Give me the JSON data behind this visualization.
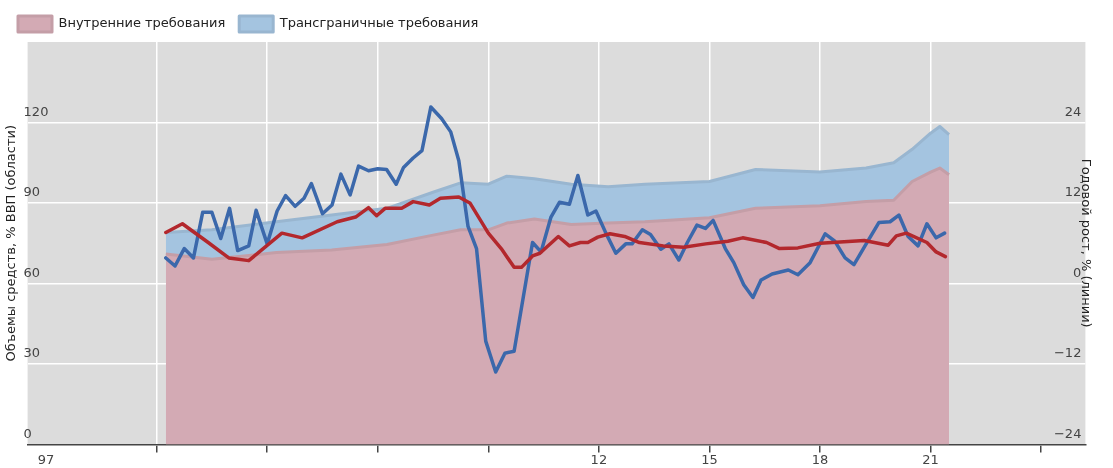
{
  "chart_data": {
    "type": "area",
    "stacked": true,
    "ylabel": "Объемы средств, % ВВП (области)",
    "y2label": "Годовой рост, % (линии)",
    "x": [
      2000.25,
      2001.5,
      2003.25,
      2004.75,
      2006.25,
      2007.5,
      2008.25,
      2009,
      2009.5,
      2010.25,
      2011.25,
      2012.25,
      2013.25,
      2015,
      2016.25,
      2018,
      2019.25,
      2020,
      2020.5,
      2021,
      2021.25,
      2021.5
    ],
    "series": [
      {
        "name": "Внутренние требования",
        "type": "area",
        "color": "#d3aab4",
        "values": [
          71,
          69,
          71.5,
          72.5,
          74.5,
          78,
          80,
          80,
          82.5,
          84,
          82,
          82.5,
          83,
          84.5,
          88,
          89,
          90.5,
          91,
          98,
          101.5,
          103,
          100.5
        ]
      },
      {
        "name": "Трансграничные требования",
        "type": "area",
        "color": "#a4c4e0",
        "values": [
          8,
          11,
          11.5,
          13,
          13.5,
          16,
          17.5,
          17,
          17.5,
          15,
          15,
          13.5,
          14,
          13.5,
          14.5,
          12.5,
          12.5,
          14,
          12,
          14.5,
          15.5,
          15
        ]
      },
      {
        "type": "line",
        "axis": "y2",
        "color": "#b3282d",
        "x": [
          2000.25,
          2000.7,
          2001.4,
          2001.96,
          2002.5,
          2003.4,
          2003.95,
          2004.9,
          2005.4,
          2005.75,
          2005.97,
          2006.2,
          2006.65,
          2006.96,
          2007.4,
          2007.7,
          2008.2,
          2008.5,
          2009,
          2009.35,
          2009.7,
          2009.9,
          2010.2,
          2010.4,
          2010.9,
          2011.2,
          2011.5,
          2011.7,
          2011.97,
          2012.3,
          2012.7,
          2013.1,
          2013.75,
          2014.3,
          2014.9,
          2015.5,
          2015.9,
          2016.55,
          2016.9,
          2017.4,
          2018,
          2019.2,
          2019.85,
          2020.07,
          2020.34,
          2020.9,
          2021.15,
          2021.4
        ],
        "values": [
          7.6,
          8.9,
          6.1,
          3.8,
          3.4,
          7.5,
          6.8,
          9.2,
          9.9,
          11.3,
          10.1,
          11.2,
          11.2,
          12.2,
          11.7,
          12.7,
          12.9,
          12,
          7.5,
          5.2,
          2.4,
          2.4,
          4.1,
          4.5,
          7,
          5.6,
          6.1,
          6.1,
          6.9,
          7.4,
          7,
          6.1,
          5.6,
          5.4,
          5.9,
          6.3,
          6.8,
          6.1,
          5.2,
          5.3,
          6,
          6.4,
          5.7,
          7.1,
          7.5,
          6.1,
          4.7,
          4
        ]
      },
      {
        "type": "line",
        "axis": "y2",
        "color": "#3b68ab",
        "x": [
          2000.25,
          2000.5,
          2000.75,
          2001,
          2001.25,
          2001.5,
          2001.74,
          2001.98,
          2002.2,
          2002.5,
          2002.7,
          2003,
          2003.27,
          2003.5,
          2003.76,
          2004,
          2004.2,
          2004.5,
          2004.76,
          2005,
          2005.25,
          2005.48,
          2005.75,
          2006,
          2006.24,
          2006.5,
          2006.7,
          2006.96,
          2007.2,
          2007.44,
          2007.73,
          2007.98,
          2008.2,
          2008.45,
          2008.68,
          2008.93,
          2009.2,
          2009.45,
          2009.7,
          2010.2,
          2010.43,
          2010.7,
          2010.93,
          2011.2,
          2011.43,
          2011.7,
          2011.92,
          2012.19,
          2012.46,
          2012.73,
          2012.9,
          2013.18,
          2013.4,
          2013.68,
          2013.9,
          2014.17,
          2014.4,
          2014.66,
          2014.89,
          2015.1,
          2015.43,
          2015.66,
          2015.93,
          2016.18,
          2016.4,
          2016.7,
          2017.14,
          2017.4,
          2017.73,
          2018.14,
          2018.4,
          2018.68,
          2018.92,
          2019.2,
          2019.6,
          2019.9,
          2020.14,
          2020.39,
          2020.66,
          2020.9,
          2021.15,
          2021.38
        ],
        "values": [
          3.8,
          2.6,
          5.2,
          3.8,
          10.6,
          10.6,
          6.7,
          11.2,
          4.9,
          5.6,
          10.9,
          5.9,
          10.8,
          13.1,
          11.5,
          12.7,
          14.9,
          10.4,
          11.7,
          16.3,
          13.2,
          17.5,
          16.8,
          17.1,
          17,
          14.8,
          17.3,
          18.7,
          19.8,
          26.3,
          24.6,
          22.6,
          18.3,
          8.5,
          5.2,
          -8.6,
          -13.2,
          -10.4,
          -10.1,
          6.1,
          4.7,
          9.9,
          12.1,
          11.8,
          16.1,
          10.2,
          10.8,
          7.5,
          4.5,
          5.9,
          5.9,
          8,
          7.3,
          5.1,
          5.9,
          3.5,
          6.1,
          8.7,
          8.2,
          9.4,
          5.2,
          3.1,
          -0.2,
          -2.1,
          0.5,
          1.4,
          2,
          1.3,
          3.1,
          7.4,
          6.3,
          3.8,
          2.8,
          5.4,
          9.1,
          9.2,
          10.2,
          7,
          5.6,
          8.9,
          6.8,
          7.5
        ]
      }
    ],
    "xlim": [
      1996.5,
      2025.2
    ],
    "xticks": [
      {
        "value": 1997,
        "label": "97"
      },
      {
        "value": 2000,
        "label": null
      },
      {
        "value": 2003,
        "label": null
      },
      {
        "value": 2006,
        "label": null
      },
      {
        "value": 2009,
        "label": null
      },
      {
        "value": 2012,
        "label": "12"
      },
      {
        "value": 2015,
        "label": "15"
      },
      {
        "value": 2018,
        "label": "18"
      },
      {
        "value": 2021,
        "label": "21"
      },
      {
        "value": 2024,
        "label": null
      }
    ],
    "ylim": [
      0,
      150
    ],
    "yticks": [
      0,
      30,
      60,
      90,
      120
    ],
    "y2lim": [
      -24,
      36
    ],
    "y2ticks": [
      {
        "value": -24,
        "label": "−24"
      },
      {
        "value": -12,
        "label": "−12"
      },
      0,
      12,
      24
    ],
    "grid": true,
    "legend": "top left",
    "marker": "none",
    "line_style": "solid"
  }
}
